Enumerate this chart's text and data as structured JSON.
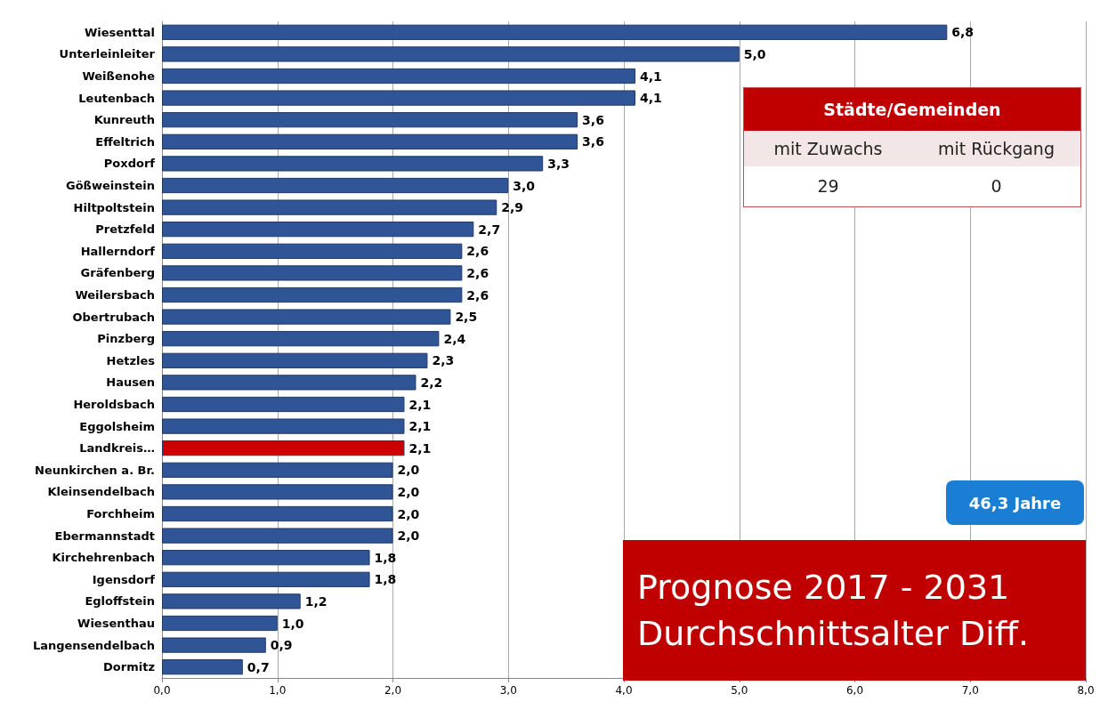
{
  "chart_data": {
    "type": "bar",
    "orientation": "horizontal",
    "title": "Prognose 2017 - 2031 Durchschnittsalter Diff.",
    "categories": [
      "Wiesenttal",
      "Unterleinleiter",
      "Weißenohe",
      "Leutenbach",
      "Kunreuth",
      "Effeltrich",
      "Poxdorf",
      "Gößweinstein",
      "Hiltpoltstein",
      "Pretzfeld",
      "Hallerndorf",
      "Gräfenberg",
      "Weilersbach",
      "Obertrubach",
      "Pinzberg",
      "Hetzles",
      "Hausen",
      "Heroldsbach",
      "Eggolsheim",
      "Landkreis…",
      "Neunkirchen a. Br.",
      "Kleinsendelbach",
      "Forchheim",
      "Ebermannstadt",
      "Kirchehrenbach",
      "Igensdorf",
      "Egloffstein",
      "Wiesenthau",
      "Langensendelbach",
      "Dormitz"
    ],
    "values": [
      6.8,
      5.0,
      4.1,
      4.1,
      3.6,
      3.6,
      3.3,
      3.0,
      2.9,
      2.7,
      2.6,
      2.6,
      2.6,
      2.5,
      2.4,
      2.3,
      2.2,
      2.1,
      2.1,
      2.1,
      2.0,
      2.0,
      2.0,
      2.0,
      1.8,
      1.8,
      1.2,
      1.0,
      0.9,
      0.7
    ],
    "value_labels": [
      "6,8",
      "5,0",
      "4,1",
      "4,1",
      "3,6",
      "3,6",
      "3,3",
      "3,0",
      "2,9",
      "2,7",
      "2,6",
      "2,6",
      "2,6",
      "2,5",
      "2,4",
      "2,3",
      "2,2",
      "2,1",
      "2,1",
      "2,1",
      "2,0",
      "2,0",
      "2,0",
      "2,0",
      "1,8",
      "1,8",
      "1,2",
      "1,0",
      "0,9",
      "0,7"
    ],
    "colors": [
      "#2f5597",
      "#2f5597",
      "#2f5597",
      "#2f5597",
      "#2f5597",
      "#2f5597",
      "#2f5597",
      "#2f5597",
      "#2f5597",
      "#2f5597",
      "#2f5597",
      "#2f5597",
      "#2f5597",
      "#2f5597",
      "#2f5597",
      "#2f5597",
      "#2f5597",
      "#2f5597",
      "#2f5597",
      "#cc0000",
      "#2f5597",
      "#2f5597",
      "#2f5597",
      "#2f5597",
      "#2f5597",
      "#2f5597",
      "#2f5597",
      "#2f5597",
      "#2f5597",
      "#2f5597"
    ],
    "xlim": [
      0,
      8
    ],
    "xticks": [
      {
        "value": 0,
        "label": "0,0"
      },
      {
        "value": 1,
        "label": "1,0"
      },
      {
        "value": 2,
        "label": "2,0"
      },
      {
        "value": 3,
        "label": "3,0"
      },
      {
        "value": 4,
        "label": "4,0"
      },
      {
        "value": 5,
        "label": "5,0"
      },
      {
        "value": 6,
        "label": "6,0"
      },
      {
        "value": 7,
        "label": "7,0"
      },
      {
        "value": 8,
        "label": "8,0"
      }
    ],
    "grid": "x",
    "annotations": [
      "Städte/Gemeinden",
      "mit Zuwachs",
      "mit Rückgang",
      "29",
      "0",
      "46,3 Jahre"
    ]
  }
}
